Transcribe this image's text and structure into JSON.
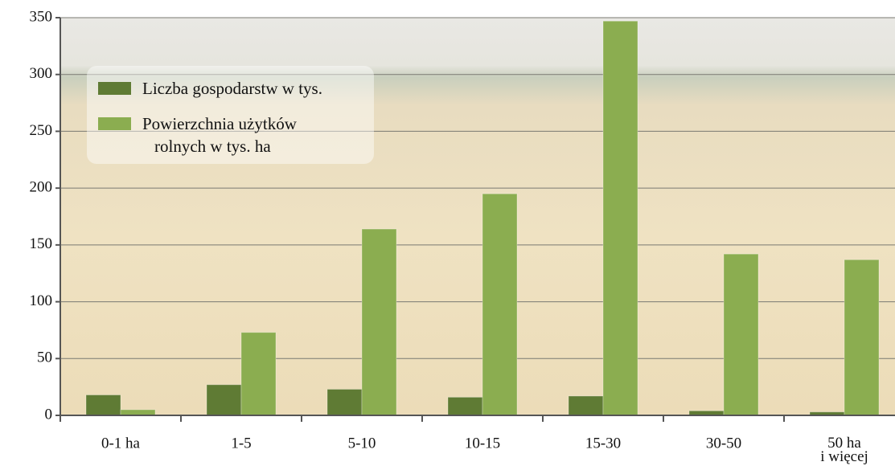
{
  "chart_data": {
    "type": "bar",
    "categories": [
      "0-1 ha",
      "1-5",
      "5-10",
      "10-15",
      "15-30",
      "30-50",
      "50 ha\ni więcej"
    ],
    "series": [
      {
        "name": "Liczba gospodarstw w tys.",
        "color": "#5f7b34",
        "values": [
          18,
          27,
          23,
          16,
          17,
          4,
          3
        ]
      },
      {
        "name": "Powierzchnia użytków\nrolnych w tys. ha",
        "color": "#8bad50",
        "values": [
          5,
          73,
          164,
          195,
          347,
          142,
          137
        ]
      }
    ],
    "ylim": [
      0,
      350
    ],
    "yticks": [
      0,
      50,
      100,
      150,
      200,
      250,
      300,
      350
    ],
    "grid": true
  }
}
